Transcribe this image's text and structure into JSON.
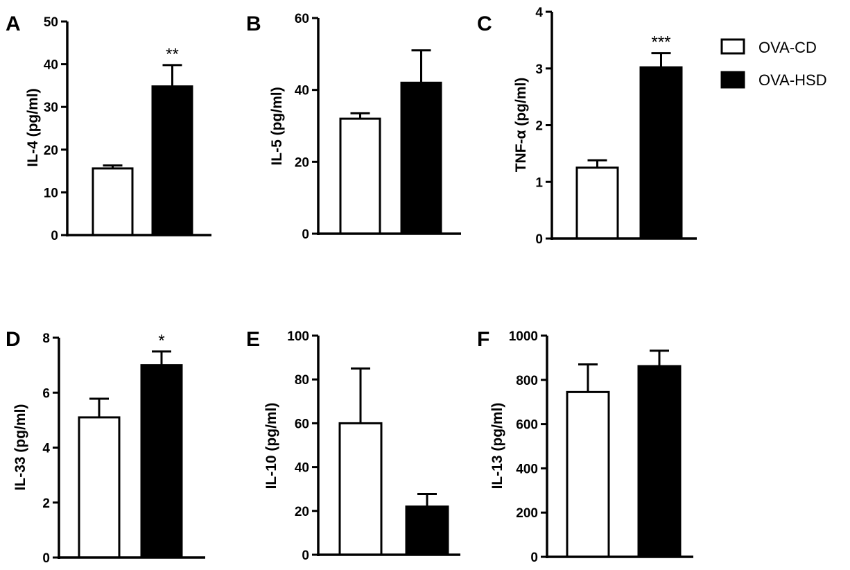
{
  "legend": {
    "placement": "top-right",
    "entries": [
      {
        "label": "OVA-CD",
        "fill": "#ffffff"
      },
      {
        "label": "OVA-HSD",
        "fill": "#000000"
      }
    ]
  },
  "chart_data": [
    {
      "panel": "A",
      "type": "bar",
      "ylabel": "IL-4 (pg/ml)",
      "ylim": [
        0,
        50
      ],
      "yticks": [
        "0",
        "10",
        "20",
        "30",
        "40",
        "50"
      ],
      "series": [
        {
          "name": "OVA-CD",
          "value": 15.6,
          "error": 0.7,
          "significance": ""
        },
        {
          "name": "OVA-HSD",
          "value": 34.8,
          "error": 5.0,
          "significance": "**"
        }
      ]
    },
    {
      "panel": "B",
      "type": "bar",
      "ylabel": "IL-5 (pg/ml)",
      "ylim": [
        0,
        60
      ],
      "yticks": [
        "0",
        "20",
        "40",
        "60"
      ],
      "series": [
        {
          "name": "OVA-CD",
          "value": 32.0,
          "error": 1.5,
          "significance": ""
        },
        {
          "name": "OVA-HSD",
          "value": 42.0,
          "error": 9.0,
          "significance": ""
        }
      ]
    },
    {
      "panel": "C",
      "type": "bar",
      "ylabel": "TNF-α (pg/ml)",
      "ylim": [
        0,
        4
      ],
      "yticks": [
        "0",
        "1",
        "2",
        "3",
        "4"
      ],
      "series": [
        {
          "name": "OVA-CD",
          "value": 1.25,
          "error": 0.13,
          "significance": ""
        },
        {
          "name": "OVA-HSD",
          "value": 3.02,
          "error": 0.25,
          "significance": "***"
        }
      ]
    },
    {
      "panel": "D",
      "type": "bar",
      "ylabel": "IL-33 (pg/ml)",
      "ylim": [
        0,
        8
      ],
      "yticks": [
        "0",
        "2",
        "4",
        "6",
        "8"
      ],
      "series": [
        {
          "name": "OVA-CD",
          "value": 5.1,
          "error": 0.68,
          "significance": ""
        },
        {
          "name": "OVA-HSD",
          "value": 7.0,
          "error": 0.5,
          "significance": "*"
        }
      ]
    },
    {
      "panel": "E",
      "type": "bar",
      "ylabel": "IL-10 (pg/ml)",
      "ylim": [
        0,
        100
      ],
      "yticks": [
        "0",
        "20",
        "40",
        "60",
        "80",
        "100"
      ],
      "series": [
        {
          "name": "OVA-CD",
          "value": 60.0,
          "error": 25.0,
          "significance": ""
        },
        {
          "name": "OVA-HSD",
          "value": 22.0,
          "error": 5.7,
          "significance": ""
        }
      ]
    },
    {
      "panel": "F",
      "type": "bar",
      "ylabel": "IL-13 (pg/ml)",
      "ylim": [
        0,
        1000
      ],
      "yticks": [
        "0",
        "200",
        "400",
        "600",
        "800",
        "1000"
      ],
      "series": [
        {
          "name": "OVA-CD",
          "value": 745,
          "error": 125,
          "significance": ""
        },
        {
          "name": "OVA-HSD",
          "value": 862,
          "error": 70,
          "significance": ""
        }
      ]
    }
  ]
}
